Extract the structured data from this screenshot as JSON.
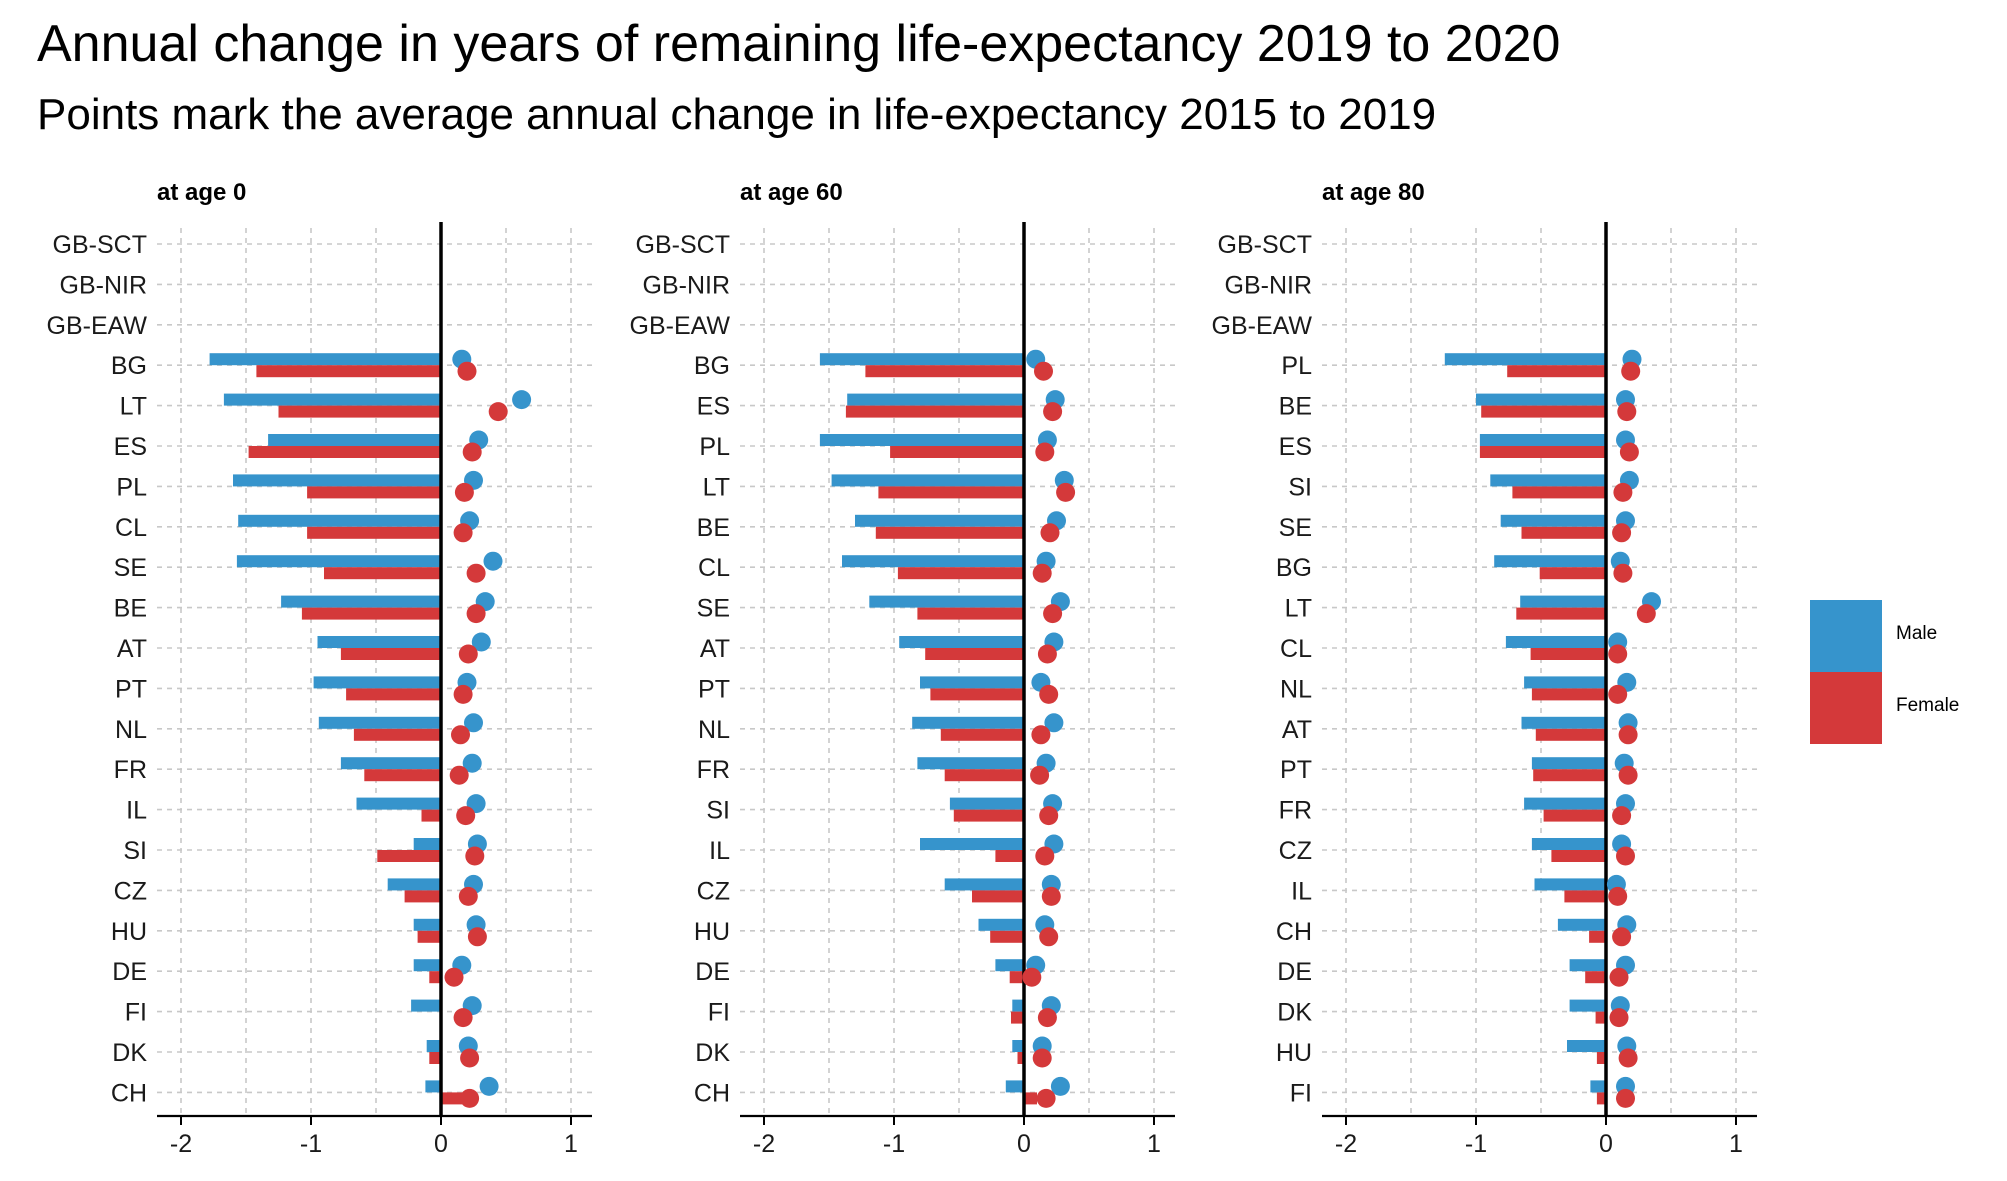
{
  "title": "Annual change in years of remaining life-expectancy 2019 to 2020",
  "subtitle": "Points mark the average annual change in life-expectancy 2015 to 2019",
  "colors": {
    "male": "#3694cc",
    "female": "#d4393a",
    "zero_line": "#000000",
    "grid": "#c8c8c8"
  },
  "legend": [
    {
      "label": "Male",
      "color": "#3694cc"
    },
    {
      "label": "Female",
      "color": "#d4393a"
    }
  ],
  "chart_data": [
    {
      "type": "bar",
      "panel_title": "at age 0",
      "xlim": [
        -2.2,
        1.15
      ],
      "x_ticks": [
        -2,
        -1,
        0,
        1
      ],
      "x_tick_labels": [
        "-2",
        "-1",
        "0",
        "1"
      ],
      "categories": [
        "GB-SCT",
        "GB-NIR",
        "GB-EAW",
        "BG",
        "LT",
        "ES",
        "PL",
        "CL",
        "SE",
        "BE",
        "AT",
        "PT",
        "NL",
        "FR",
        "IL",
        "SI",
        "CZ",
        "HU",
        "DE",
        "FI",
        "DK",
        "CH"
      ],
      "series": [
        {
          "name": "Male",
          "kind": "bar",
          "values": [
            null,
            null,
            null,
            -1.78,
            -1.67,
            -1.33,
            -1.6,
            -1.56,
            -1.57,
            -1.23,
            -0.95,
            -0.98,
            -0.94,
            -0.77,
            -0.65,
            -0.21,
            -0.41,
            -0.21,
            -0.21,
            -0.23,
            -0.11,
            -0.12
          ]
        },
        {
          "name": "Female",
          "kind": "bar",
          "values": [
            null,
            null,
            null,
            -1.42,
            -1.25,
            -1.48,
            -1.03,
            -1.03,
            -0.9,
            -1.07,
            -0.77,
            -0.73,
            -0.67,
            -0.59,
            -0.15,
            -0.49,
            -0.28,
            -0.18,
            -0.09,
            0.0,
            -0.09,
            0.2
          ]
        },
        {
          "name": "Male",
          "kind": "point",
          "values": [
            null,
            null,
            null,
            0.16,
            0.62,
            0.29,
            0.25,
            0.22,
            0.4,
            0.34,
            0.31,
            0.2,
            0.25,
            0.24,
            0.27,
            0.28,
            0.25,
            0.27,
            0.16,
            0.24,
            0.21,
            0.37
          ]
        },
        {
          "name": "Female",
          "kind": "point",
          "values": [
            null,
            null,
            null,
            0.2,
            0.44,
            0.24,
            0.18,
            0.17,
            0.27,
            0.27,
            0.21,
            0.17,
            0.15,
            0.14,
            0.19,
            0.26,
            0.21,
            0.28,
            0.1,
            0.17,
            0.22,
            0.22
          ]
        }
      ]
    },
    {
      "type": "bar",
      "panel_title": "at age 60",
      "xlim": [
        -2.2,
        1.15
      ],
      "x_ticks": [
        -2,
        -1,
        0,
        1
      ],
      "x_tick_labels": [
        "-2",
        "-1",
        "0",
        "1"
      ],
      "categories": [
        "GB-SCT",
        "GB-NIR",
        "GB-EAW",
        "BG",
        "ES",
        "PL",
        "LT",
        "BE",
        "CL",
        "SE",
        "AT",
        "PT",
        "NL",
        "FR",
        "SI",
        "IL",
        "CZ",
        "HU",
        "DE",
        "FI",
        "DK",
        "CH"
      ],
      "series": [
        {
          "name": "Male",
          "kind": "bar",
          "values": [
            null,
            null,
            null,
            -1.57,
            -1.36,
            -1.57,
            -1.48,
            -1.3,
            -1.4,
            -1.19,
            -0.96,
            -0.8,
            -0.86,
            -0.82,
            -0.57,
            -0.8,
            -0.61,
            -0.35,
            -0.22,
            -0.09,
            -0.09,
            -0.14
          ]
        },
        {
          "name": "Female",
          "kind": "bar",
          "values": [
            null,
            null,
            null,
            -1.22,
            -1.37,
            -1.03,
            -1.12,
            -1.14,
            -0.97,
            -0.82,
            -0.76,
            -0.72,
            -0.64,
            -0.61,
            -0.54,
            -0.22,
            -0.4,
            -0.26,
            -0.11,
            -0.1,
            -0.05,
            0.1
          ]
        },
        {
          "name": "Male",
          "kind": "point",
          "values": [
            null,
            null,
            null,
            0.09,
            0.24,
            0.18,
            0.31,
            0.25,
            0.17,
            0.28,
            0.23,
            0.13,
            0.23,
            0.17,
            0.22,
            0.23,
            0.21,
            0.16,
            0.09,
            0.21,
            0.14,
            0.28
          ]
        },
        {
          "name": "Female",
          "kind": "point",
          "values": [
            null,
            null,
            null,
            0.15,
            0.22,
            0.16,
            0.32,
            0.2,
            0.14,
            0.22,
            0.18,
            0.19,
            0.13,
            0.12,
            0.19,
            0.16,
            0.21,
            0.19,
            0.06,
            0.18,
            0.14,
            0.17
          ]
        }
      ]
    },
    {
      "type": "bar",
      "panel_title": "at age 80",
      "xlim": [
        -2.2,
        1.15
      ],
      "x_ticks": [
        -2,
        -1,
        0,
        1
      ],
      "x_tick_labels": [
        "-2",
        "-1",
        "0",
        "1"
      ],
      "categories": [
        "GB-SCT",
        "GB-NIR",
        "GB-EAW",
        "PL",
        "BE",
        "ES",
        "SI",
        "SE",
        "BG",
        "LT",
        "CL",
        "NL",
        "AT",
        "PT",
        "FR",
        "CZ",
        "IL",
        "CH",
        "DE",
        "DK",
        "HU",
        "FI"
      ],
      "series": [
        {
          "name": "Male",
          "kind": "bar",
          "values": [
            null,
            null,
            null,
            -1.24,
            -1.0,
            -0.97,
            -0.89,
            -0.81,
            -0.86,
            -0.66,
            -0.77,
            -0.63,
            -0.65,
            -0.57,
            -0.63,
            -0.57,
            -0.55,
            -0.37,
            -0.28,
            -0.28,
            -0.3,
            -0.12
          ]
        },
        {
          "name": "Female",
          "kind": "bar",
          "values": [
            null,
            null,
            null,
            -0.76,
            -0.96,
            -0.97,
            -0.72,
            -0.65,
            -0.51,
            -0.69,
            -0.58,
            -0.57,
            -0.54,
            -0.56,
            -0.48,
            -0.42,
            -0.32,
            -0.13,
            -0.16,
            -0.08,
            -0.07,
            -0.07
          ]
        },
        {
          "name": "Male",
          "kind": "point",
          "values": [
            null,
            null,
            null,
            0.2,
            0.15,
            0.15,
            0.18,
            0.15,
            0.11,
            0.35,
            0.09,
            0.16,
            0.17,
            0.14,
            0.15,
            0.12,
            0.08,
            0.16,
            0.15,
            0.11,
            0.16,
            0.15
          ]
        },
        {
          "name": "Female",
          "kind": "point",
          "values": [
            null,
            null,
            null,
            0.19,
            0.16,
            0.18,
            0.13,
            0.12,
            0.13,
            0.31,
            0.09,
            0.09,
            0.17,
            0.17,
            0.12,
            0.15,
            0.09,
            0.12,
            0.1,
            0.1,
            0.17,
            0.15
          ]
        }
      ]
    }
  ]
}
